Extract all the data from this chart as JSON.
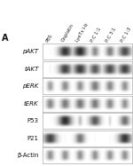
{
  "figure_width": 1.5,
  "figure_height": 1.87,
  "dpi": 100,
  "background_color": "#ffffff",
  "panel_label": "A",
  "column_labels": [
    "PBS",
    "Cisplatin",
    "LyeTx I-b",
    "P:C 1:1",
    "P:C 3:1",
    "P:C 1:3"
  ],
  "row_labels": [
    "pAKT",
    "tAKT",
    "pERK",
    "tERK",
    "P53",
    "P21",
    "β-Actin"
  ],
  "n_cols": 6,
  "n_rows": 7,
  "band_intensities": {
    "pAKT": [
      0.04,
      0.88,
      0.92,
      0.5,
      0.55,
      0.78
    ],
    "tAKT": [
      0.08,
      0.82,
      0.85,
      0.72,
      0.78,
      0.82
    ],
    "pERK": [
      0.42,
      0.5,
      0.48,
      0.58,
      0.52,
      0.48
    ],
    "tERK": [
      0.52,
      0.58,
      0.6,
      0.58,
      0.52,
      0.48
    ],
    "P53": [
      0.04,
      0.92,
      0.28,
      0.72,
      0.18,
      0.62
    ],
    "P21": [
      0.82,
      0.06,
      0.6,
      0.06,
      0.06,
      0.88
    ],
    "b-Actin": [
      0.48,
      0.48,
      0.48,
      0.48,
      0.48,
      0.48
    ]
  },
  "label_fontsize": 5.0,
  "col_label_fontsize": 3.8,
  "panel_label_fontsize": 7,
  "italic_rows": [
    "pAKT",
    "tAKT",
    "pERK",
    "tERK"
  ],
  "band_color": "#1a1a1a",
  "box_bg": "#f5f5f5",
  "box_edge": "#aaaaaa"
}
